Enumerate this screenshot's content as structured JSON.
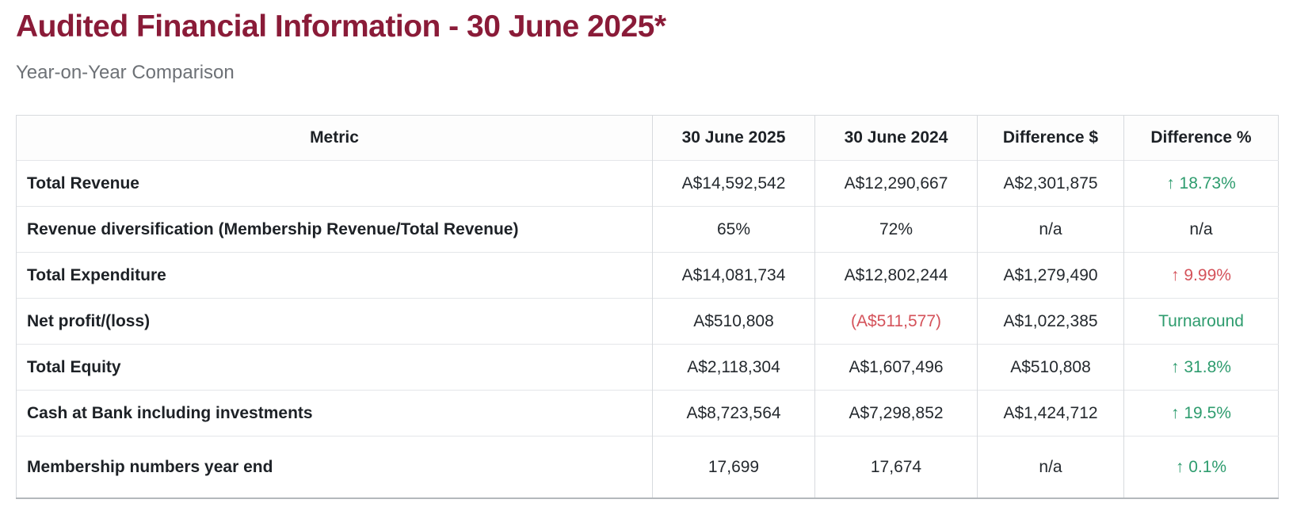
{
  "colors": {
    "title": "#8a1b38",
    "subtitle": "#6d7176",
    "heading_text": "#1d2126",
    "text": "#24292e",
    "green": "#2e9c6e",
    "red": "#d4525a",
    "border": "#d7dade",
    "row_border": "#e4e6e9",
    "bottom_border": "#b4b8bc"
  },
  "header": {
    "title": "Audited Financial Information - 30 June 2025*",
    "subtitle": "Year-on-Year Comparison"
  },
  "table": {
    "columns": [
      "Metric",
      "30 June 2025",
      "30 June 2024",
      "Difference $",
      "Difference %"
    ],
    "rows": [
      {
        "metric": "Total Revenue",
        "jun2025": "A$14,592,542",
        "jun2024": "A$12,290,667",
        "difference_dollar": "A$2,301,875",
        "difference_pct": "↑ 18.73%",
        "pct_status": "positive"
      },
      {
        "metric": "Revenue diversification (Membership Revenue/Total Revenue)",
        "jun2025": "65%",
        "jun2024": "72%",
        "difference_dollar": "n/a",
        "difference_pct": "n/a",
        "pct_status": "neutral"
      },
      {
        "metric": "Total Expenditure",
        "jun2025": "A$14,081,734",
        "jun2024": "A$12,802,244",
        "difference_dollar": "A$1,279,490",
        "difference_pct": "↑ 9.99%",
        "pct_status": "negative"
      },
      {
        "metric": "Net profit/(loss)",
        "jun2025": "A$510,808",
        "jun2024": "(A$511,577)",
        "jun2024_negative": true,
        "difference_dollar": "A$1,022,385",
        "difference_pct": "Turnaround",
        "pct_status": "positive"
      },
      {
        "metric": "Total Equity",
        "jun2025": "A$2,118,304",
        "jun2024": "A$1,607,496",
        "difference_dollar": "A$510,808",
        "difference_pct": "↑ 31.8%",
        "pct_status": "positive"
      },
      {
        "metric": "Cash at Bank including investments",
        "jun2025": "A$8,723,564",
        "jun2024": "A$7,298,852",
        "difference_dollar": "A$1,424,712",
        "difference_pct": "↑ 19.5%",
        "pct_status": "positive"
      },
      {
        "metric": "Membership numbers year end",
        "jun2025": "17,699",
        "jun2024": "17,674",
        "difference_dollar": "n/a",
        "difference_pct": "↑ 0.1%",
        "pct_status": "positive"
      }
    ]
  }
}
